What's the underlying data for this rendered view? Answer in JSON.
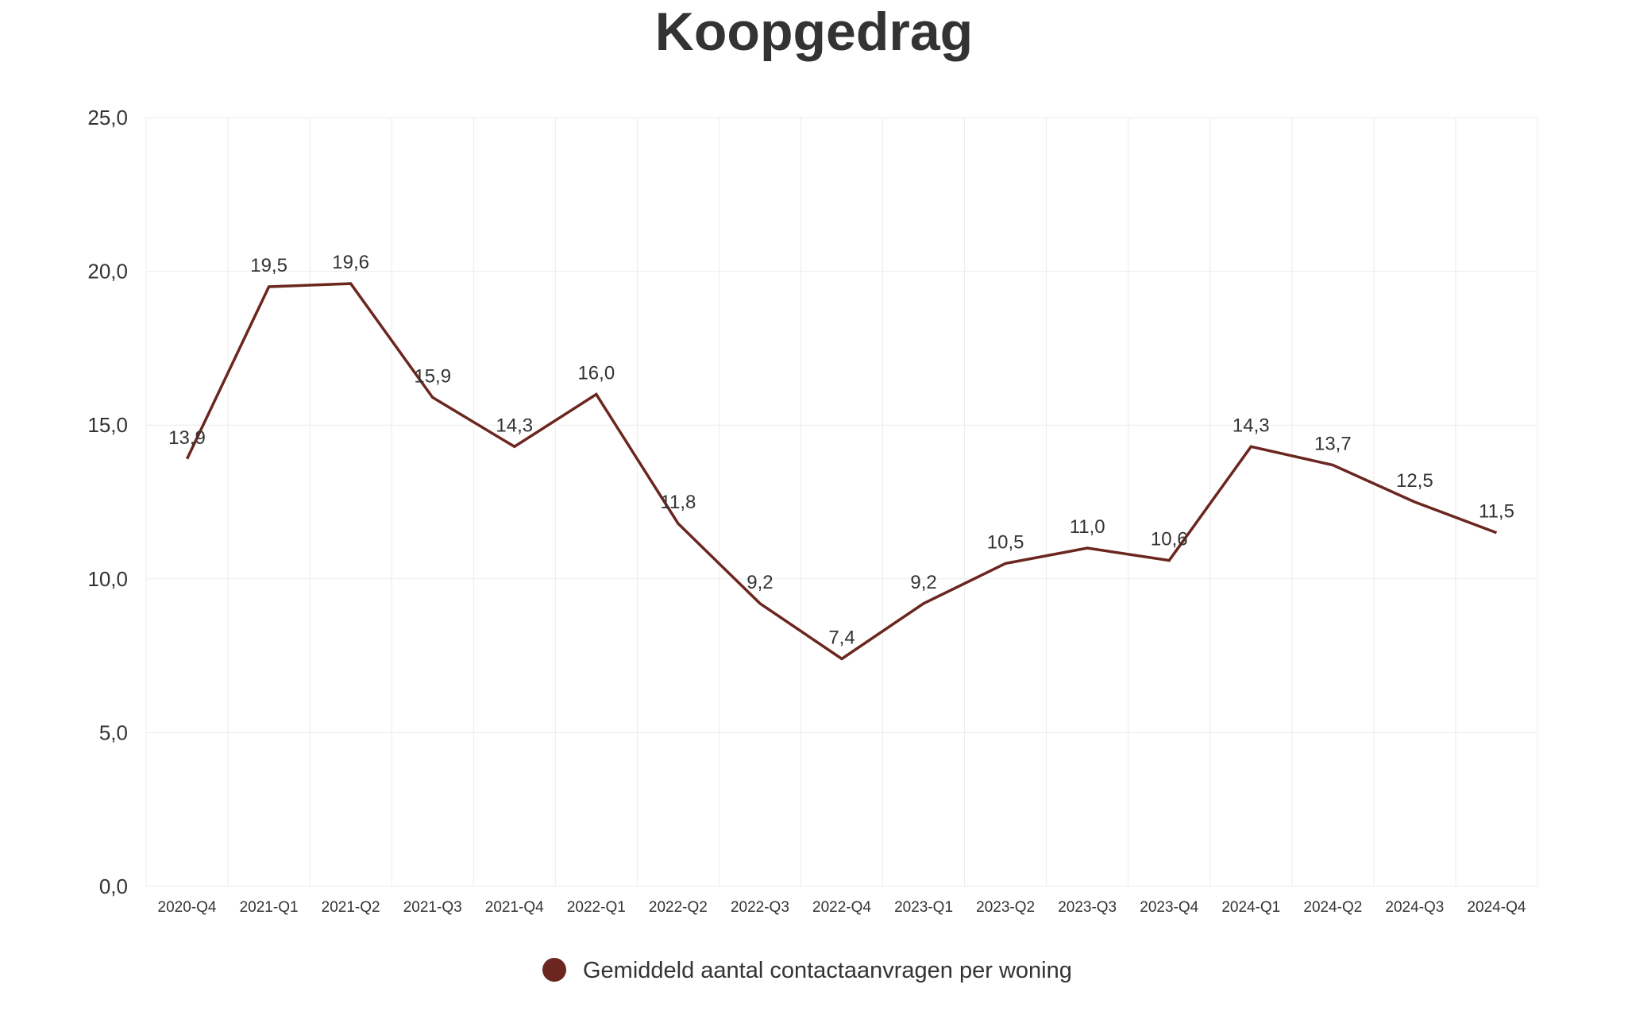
{
  "chart_data": {
    "type": "line",
    "title": "Koopgedrag",
    "categories": [
      "2020-Q4",
      "2021-Q1",
      "2021-Q2",
      "2021-Q3",
      "2021-Q4",
      "2022-Q1",
      "2022-Q2",
      "2022-Q3",
      "2022-Q4",
      "2023-Q1",
      "2023-Q2",
      "2023-Q3",
      "2023-Q4",
      "2024-Q1",
      "2024-Q2",
      "2024-Q3",
      "2024-Q4"
    ],
    "series": [
      {
        "name": "Gemiddeld aantal contactaanvragen per woning",
        "color": "#6b261f",
        "values": [
          13.9,
          19.5,
          19.6,
          15.9,
          14.3,
          16.0,
          11.8,
          9.2,
          7.4,
          9.2,
          10.5,
          11.0,
          10.6,
          14.3,
          13.7,
          12.5,
          11.5
        ],
        "labels": [
          "13,9",
          "19,5",
          "19,6",
          "15,9",
          "14,3",
          "16,0",
          "11,8",
          "9,2",
          "7,4",
          "9,2",
          "10,5",
          "11,0",
          "10,6",
          "14,3",
          "13,7",
          "12,5",
          "11,5"
        ]
      }
    ],
    "ylim": [
      0,
      25
    ],
    "yticks": [
      "0,0",
      "5,0",
      "10,0",
      "15,0",
      "20,0",
      "25,0"
    ],
    "xlabel": "",
    "ylabel": "",
    "grid": true,
    "legend_position": "bottom-center"
  }
}
